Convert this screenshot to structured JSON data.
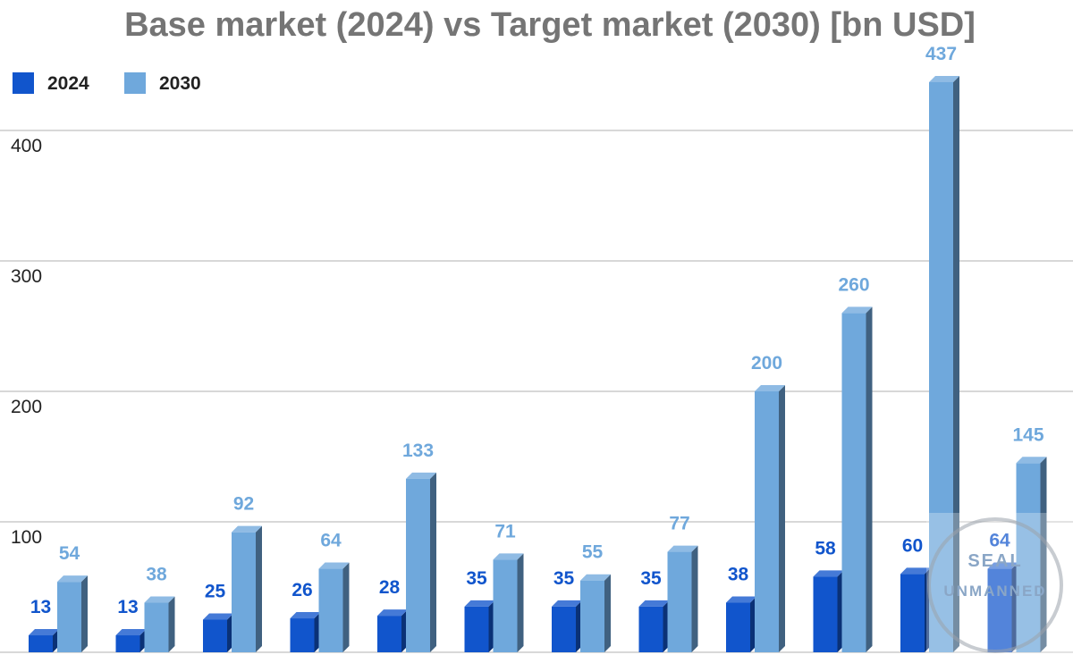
{
  "chart_data": {
    "type": "bar",
    "title": "Base market (2024) vs Target market (2030) [bn USD]",
    "categories": [
      "",
      "",
      "",
      "",
      "",
      "",
      "",
      "",
      "",
      "",
      "",
      ""
    ],
    "series": [
      {
        "name": "2024",
        "color": "#1155cc",
        "values": [
          13,
          13,
          25,
          26,
          28,
          35,
          35,
          35,
          38,
          58,
          60,
          64
        ]
      },
      {
        "name": "2030",
        "color": "#6fa8dc",
        "values": [
          54,
          38,
          92,
          64,
          133,
          71,
          55,
          77,
          200,
          260,
          437,
          145
        ]
      }
    ],
    "ylim": [
      0,
      400
    ],
    "yticks": [
      "100",
      "200",
      "300",
      "400"
    ],
    "grid": true,
    "legend": "top-left",
    "xlabel": "",
    "ylabel": ""
  },
  "watermark": {
    "line1": "SEAL",
    "line2": "UNMANNED"
  }
}
